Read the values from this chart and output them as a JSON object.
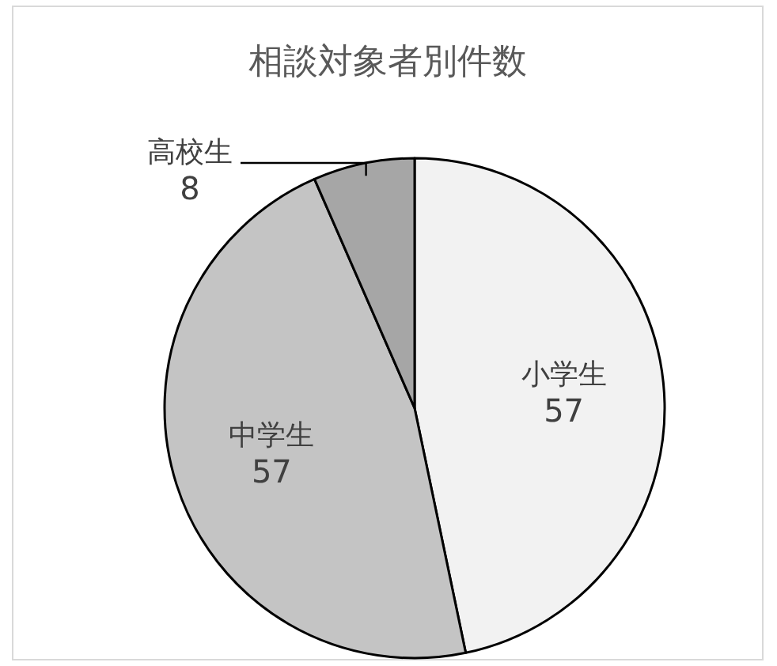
{
  "chart_data": {
    "type": "pie",
    "title": "相談対象者別件数",
    "categories": [
      "小学生",
      "中学生",
      "高校生"
    ],
    "values": [
      57,
      57,
      8
    ],
    "colors": [
      "#f2f2f2",
      "#c4c4c4",
      "#a6a6a6"
    ],
    "data_labels": true
  }
}
